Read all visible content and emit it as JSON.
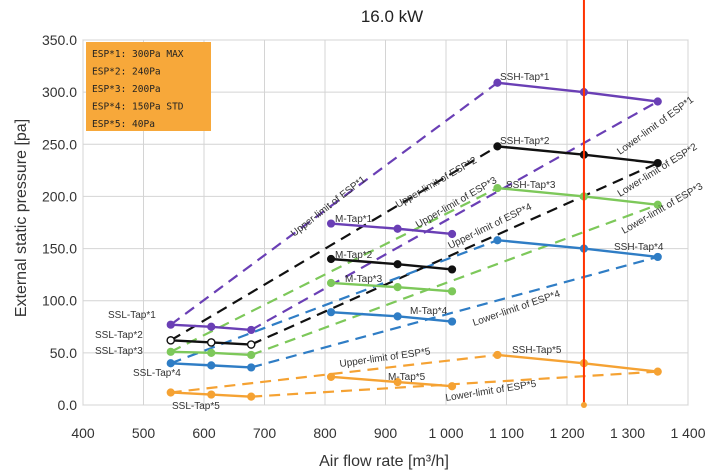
{
  "chart_data": {
    "type": "line",
    "title": "16.0 kW",
    "xlabel": "Air flow rate [m³/h]",
    "ylabel": "External static pressure [pa]",
    "xlim": [
      400,
      1400
    ],
    "ylim": [
      0,
      350
    ],
    "x_ticks": [
      "400",
      "500",
      "600",
      "700",
      "800",
      "900",
      "1 000",
      "1 100",
      "1 200",
      "1 300",
      "1 400"
    ],
    "y_ticks": [
      "0.0",
      "50.0",
      "100.0",
      "150.0",
      "200.0",
      "250.0",
      "300.0",
      "350.0"
    ],
    "grid": true,
    "legend_box": [
      "ESP*1: 300Pa MAX",
      "ESP*2: 240Pa",
      "ESP*3: 200Pa",
      "ESP*4: 150Pa STD",
      "ESP*5: 40Pa"
    ],
    "vertical_line": {
      "x": 1228,
      "color": "#ff3300"
    },
    "series": [
      {
        "key": "esp1",
        "color": "#6a3fb5",
        "ssl": [
          [
            545,
            77
          ],
          [
            612,
            75
          ],
          [
            678,
            72
          ]
        ],
        "m": [
          [
            810,
            174
          ],
          [
            920,
            169
          ],
          [
            1010,
            164
          ]
        ],
        "ssh": [
          [
            1085,
            309
          ],
          [
            1228,
            300
          ],
          [
            1350,
            291
          ]
        ],
        "upper": [
          [
            545,
            77
          ],
          [
            1085,
            309
          ]
        ],
        "lower": [
          [
            678,
            72
          ],
          [
            1350,
            291
          ]
        ]
      },
      {
        "key": "esp2",
        "color": "#111111",
        "ssl": [
          [
            545,
            62
          ],
          [
            612,
            60
          ],
          [
            678,
            58
          ]
        ],
        "m": [
          [
            810,
            140
          ],
          [
            920,
            135
          ],
          [
            1010,
            130
          ]
        ],
        "ssh": [
          [
            1085,
            248
          ],
          [
            1228,
            240
          ],
          [
            1350,
            232
          ]
        ],
        "upper": [
          [
            545,
            62
          ],
          [
            1085,
            248
          ]
        ],
        "lower": [
          [
            678,
            58
          ],
          [
            1350,
            232
          ]
        ]
      },
      {
        "key": "esp3",
        "color": "#7dc85a",
        "ssl": [
          [
            545,
            51
          ],
          [
            612,
            50
          ],
          [
            678,
            48
          ]
        ],
        "m": [
          [
            810,
            117
          ],
          [
            920,
            113
          ],
          [
            1010,
            109
          ]
        ],
        "ssh": [
          [
            1085,
            208
          ],
          [
            1228,
            200
          ],
          [
            1350,
            192
          ]
        ],
        "upper": [
          [
            545,
            51
          ],
          [
            1085,
            208
          ]
        ],
        "lower": [
          [
            678,
            48
          ],
          [
            1350,
            192
          ]
        ]
      },
      {
        "key": "esp4",
        "color": "#2f7dc5",
        "ssl": [
          [
            545,
            40
          ],
          [
            612,
            38
          ],
          [
            678,
            36
          ]
        ],
        "m": [
          [
            810,
            89
          ],
          [
            920,
            85
          ],
          [
            1010,
            80
          ]
        ],
        "ssh": [
          [
            1085,
            158
          ],
          [
            1228,
            150
          ],
          [
            1350,
            142
          ]
        ],
        "upper": [
          [
            545,
            40
          ],
          [
            1085,
            158
          ]
        ],
        "lower": [
          [
            678,
            36
          ],
          [
            1350,
            142
          ]
        ]
      },
      {
        "key": "esp5",
        "color": "#f5a233",
        "ssl": [
          [
            545,
            12
          ],
          [
            612,
            10
          ],
          [
            678,
            8
          ]
        ],
        "m": [
          [
            810,
            27
          ],
          [
            920,
            22
          ],
          [
            1010,
            18
          ]
        ],
        "ssh": [
          [
            1085,
            48
          ],
          [
            1228,
            40
          ],
          [
            1350,
            32
          ]
        ],
        "upper": [
          [
            545,
            12
          ],
          [
            1085,
            48
          ]
        ],
        "lower": [
          [
            678,
            8
          ],
          [
            1350,
            32
          ]
        ]
      }
    ],
    "labels": {
      "ssl": [
        "SSL-Tap*1",
        "SSL-Tap*2",
        "SSL-Tap*3",
        "SSL-Tap*4",
        "SSL-Tap*5"
      ],
      "m": [
        "M-Tap*1",
        "M-Tap*2",
        "M-Tap*3",
        "M-Tap*4",
        "M-Tap*5"
      ],
      "ssh": [
        "SSH-Tap*1",
        "SSH-Tap*2",
        "SSH-Tap*3",
        "SSH-Tap*4",
        "SSH-Tap*5"
      ],
      "upper": [
        "Upper-limit of ESP*1",
        "Upper-limit of ESP*2",
        "Upper-limit of ESP*3",
        "Upper-limit of ESP*4",
        "Upper-limit of ESP*5"
      ],
      "lower": [
        "Lower-limit of ESP*1",
        "Lower-limit of ESP*2",
        "Lower-limit of ESP*3",
        "Lower-limit of ESP*4",
        "Lower-limit of ESP*5"
      ]
    }
  }
}
